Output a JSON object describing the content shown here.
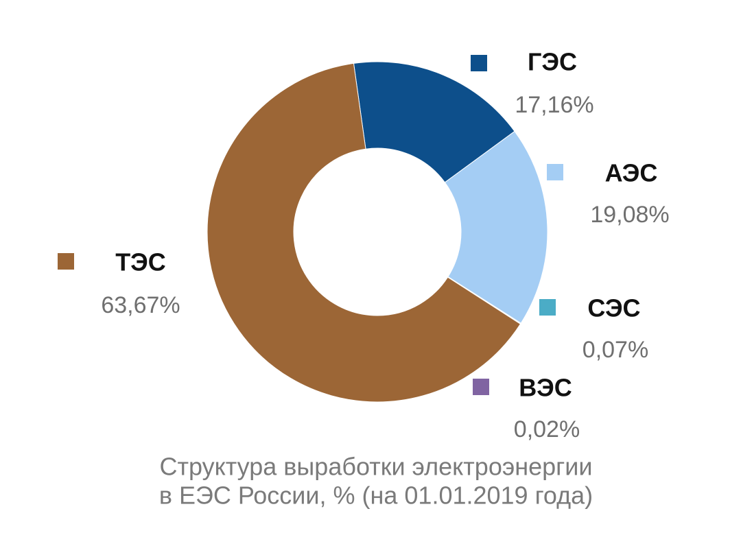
{
  "chart_data": {
    "type": "pie",
    "title": "Структура выработки электроэнергии",
    "subtitle": "в ЕЭС России, % (на 01.01.2019 года)",
    "categories": [
      "ГЭС",
      "АЭС",
      "СЭС",
      "ВЭС",
      "ТЭС"
    ],
    "values": [
      17.16,
      19.08,
      0.07,
      0.02,
      63.67
    ],
    "value_labels": [
      "17,16%",
      "19,08%",
      "0,07%",
      "0,02%",
      "63,67%"
    ],
    "colors": [
      "#0d4f8b",
      "#a4cdf4",
      "#4bacc6",
      "#8064a2",
      "#9c6636"
    ]
  }
}
